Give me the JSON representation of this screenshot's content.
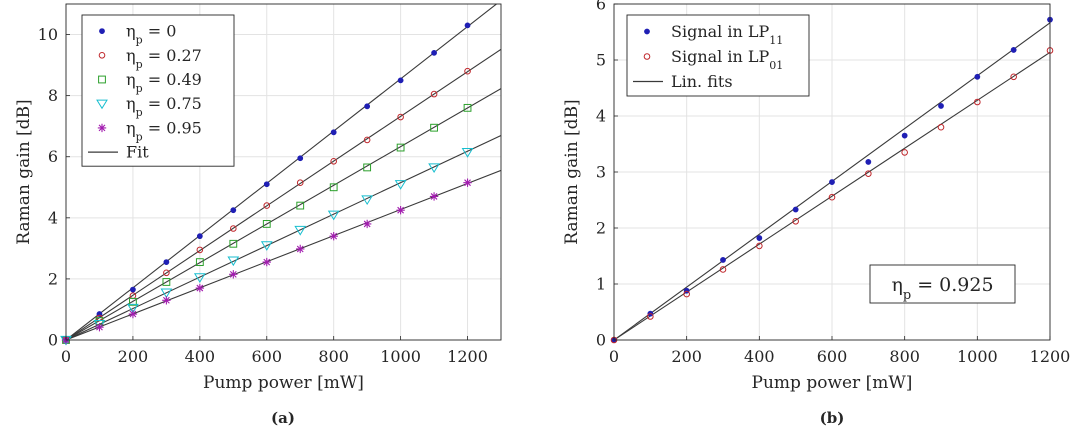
{
  "chart_data": [
    {
      "type": "scatter",
      "caption": "(a)",
      "xlabel": "Pump power [mW]",
      "ylabel": "Raman gain [dB]",
      "xlim": [
        0,
        1300
      ],
      "ylim": [
        0,
        11
      ],
      "xticks": [
        0,
        200,
        400,
        600,
        800,
        1000,
        1200
      ],
      "yticks": [
        0,
        2,
        4,
        6,
        8,
        10
      ],
      "grid": true,
      "legend_position": "top-left",
      "x": [
        0,
        100,
        200,
        300,
        400,
        500,
        600,
        700,
        800,
        900,
        1000,
        1100,
        1200
      ],
      "series": [
        {
          "name": "η_p = 0",
          "marker": "dot",
          "color": "#1f1fb4",
          "values": [
            0,
            0.85,
            1.65,
            2.55,
            3.4,
            4.25,
            5.1,
            5.95,
            6.8,
            7.65,
            8.5,
            9.4,
            10.3
          ]
        },
        {
          "name": "η_p = 0.27",
          "marker": "circle",
          "color": "#c0282d",
          "values": [
            0,
            0.72,
            1.45,
            2.2,
            2.95,
            3.65,
            4.4,
            5.15,
            5.85,
            6.55,
            7.3,
            8.05,
            8.8
          ]
        },
        {
          "name": "η_p = 0.49",
          "marker": "square",
          "color": "#2ca02c",
          "values": [
            0,
            0.62,
            1.25,
            1.9,
            2.55,
            3.15,
            3.8,
            4.4,
            5.0,
            5.65,
            6.3,
            6.95,
            7.6
          ]
        },
        {
          "name": "η_p = 0.75",
          "marker": "triangle-down",
          "color": "#17becf",
          "values": [
            0,
            0.52,
            1.05,
            1.55,
            2.05,
            2.6,
            3.1,
            3.6,
            4.1,
            4.6,
            5.1,
            5.65,
            6.15
          ]
        },
        {
          "name": "η_p = 0.95",
          "marker": "star",
          "color": "#a21caf",
          "values": [
            0,
            0.42,
            0.85,
            1.3,
            1.7,
            2.15,
            2.55,
            2.98,
            3.4,
            3.8,
            4.25,
            4.7,
            5.15
          ]
        }
      ],
      "fits": [
        {
          "slope": 0.00855,
          "color": "#3a3a3a"
        },
        {
          "slope": 0.00732,
          "color": "#3a3a3a"
        },
        {
          "slope": 0.00633,
          "color": "#3a3a3a"
        },
        {
          "slope": 0.00515,
          "color": "#3a3a3a"
        },
        {
          "slope": 0.00427,
          "color": "#3a3a3a"
        }
      ],
      "fit_label": "Fit"
    },
    {
      "type": "scatter",
      "caption": "(b)",
      "xlabel": "Pump power [mW]",
      "ylabel": "Raman gain [dB]",
      "xlim": [
        0,
        1200
      ],
      "ylim": [
        0,
        6
      ],
      "xticks": [
        0,
        200,
        400,
        600,
        800,
        1000,
        1200
      ],
      "yticks": [
        0,
        1,
        2,
        3,
        4,
        5,
        6
      ],
      "grid": true,
      "legend_position": "top-left",
      "annotation": "η_p = 0.925",
      "x": [
        0,
        100,
        200,
        300,
        400,
        500,
        600,
        700,
        800,
        900,
        1000,
        1100,
        1200
      ],
      "series": [
        {
          "name": "Signal in LP_11",
          "marker": "dot",
          "color": "#1f1fb4",
          "values": [
            0,
            0.47,
            0.88,
            1.43,
            1.82,
            2.33,
            2.82,
            3.18,
            3.65,
            4.18,
            4.7,
            5.18,
            5.72
          ]
        },
        {
          "name": "Signal in LP_01",
          "marker": "circle",
          "color": "#c0282d",
          "values": [
            0,
            0.42,
            0.82,
            1.26,
            1.68,
            2.12,
            2.55,
            2.97,
            3.35,
            3.8,
            4.25,
            4.7,
            5.17
          ]
        }
      ],
      "fits": [
        {
          "slope": 0.00472,
          "color": "#3a3a3a"
        },
        {
          "slope": 0.00428,
          "color": "#3a3a3a"
        }
      ],
      "fit_label": "Lin. fits"
    }
  ]
}
